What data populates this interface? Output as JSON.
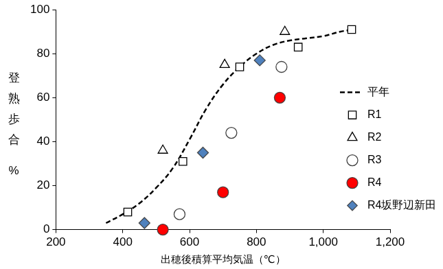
{
  "chart_data": {
    "type": "scatter",
    "xlabel": "出穂後積算平均気温（℃）",
    "ylabel": "登熟歩合%",
    "xlim": [
      200,
      1200
    ],
    "xticks": [
      200,
      400,
      600,
      800,
      1000,
      1200
    ],
    "ylim": [
      0,
      100
    ],
    "yticks": [
      0,
      20,
      40,
      60,
      80,
      100
    ],
    "grid": false,
    "legend": "lower right",
    "series": [
      {
        "name": "平年",
        "type": "line",
        "line_style": "dashed",
        "marker": "none",
        "color": "#000000",
        "x": [
          350,
          400,
          450,
          500,
          550,
          600,
          650,
          700,
          750,
          800,
          850,
          900,
          950,
          1000,
          1050,
          1090
        ],
        "values": [
          3,
          7,
          12,
          19,
          28,
          41,
          55,
          66,
          74,
          80,
          84,
          86,
          87,
          88,
          90,
          91
        ]
      },
      {
        "name": "R1",
        "marker": "open_square",
        "color": "#000000",
        "x": [
          415,
          580,
          750,
          925,
          1085
        ],
        "values": [
          8,
          31,
          74,
          83,
          91
        ]
      },
      {
        "name": "R2",
        "marker": "open_triangle",
        "color": "#000000",
        "x": [
          520,
          705,
          885
        ],
        "values": [
          36,
          75,
          90
        ]
      },
      {
        "name": "R3",
        "marker": "open_circle",
        "color": "#404040",
        "x": [
          570,
          725,
          875
        ],
        "values": [
          7,
          44,
          74
        ]
      },
      {
        "name": "R4",
        "marker": "filled_circle",
        "color": "#ff0000",
        "x": [
          520,
          700,
          870
        ],
        "values": [
          0,
          17,
          60
        ]
      },
      {
        "name": "R4坂野辺新田",
        "marker": "filled_diamond",
        "color": "#4f81bd",
        "x": [
          465,
          640,
          810
        ],
        "values": [
          3,
          35,
          77
        ]
      }
    ]
  }
}
